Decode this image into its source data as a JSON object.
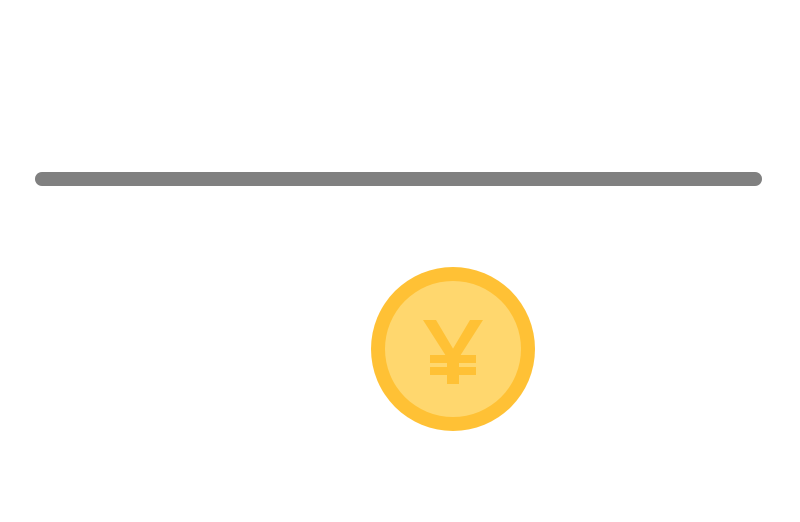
{
  "divider": {
    "color": "#808080"
  },
  "coin": {
    "icon": "yen-coin-icon",
    "outer_color": "#FFC135",
    "inner_color": "#FFD76E",
    "symbol_color": "#FFC135"
  }
}
